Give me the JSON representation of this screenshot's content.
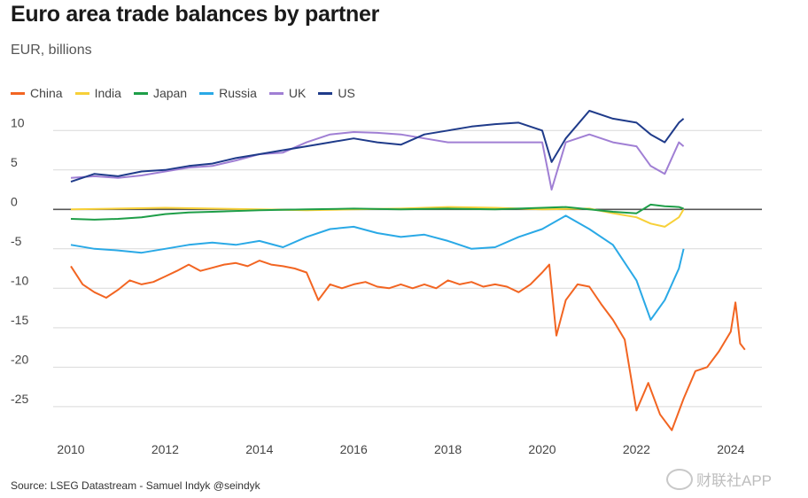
{
  "header": {
    "title": "Euro area trade balances by partner",
    "subtitle": "EUR, billions"
  },
  "footer": {
    "source": "Source: LSEG Datastream - Samuel Indyk @seindyk"
  },
  "watermark": {
    "text": "财联社APP"
  },
  "chart_data": {
    "type": "line",
    "title": "Euro area trade balances by partner",
    "subtitle": "EUR, billions",
    "xlabel": "",
    "ylabel": "",
    "xlim": [
      2010,
      2024.4
    ],
    "ylim": [
      -28.5,
      12.5
    ],
    "x_ticks": [
      "2010",
      "2012",
      "2014",
      "2016",
      "2018",
      "2020",
      "2022",
      "2024"
    ],
    "y_ticks": [
      "10",
      "5",
      "0",
      "-5",
      "-10",
      "-15",
      "-20",
      "-25"
    ],
    "grid": true,
    "legend_position": "top-left",
    "series": [
      {
        "name": "China",
        "color": "#f26522",
        "points": [
          [
            2010.0,
            -7.2
          ],
          [
            2010.25,
            -9.5
          ],
          [
            2010.5,
            -10.5
          ],
          [
            2010.75,
            -11.2
          ],
          [
            2011.0,
            -10.2
          ],
          [
            2011.25,
            -9.0
          ],
          [
            2011.5,
            -9.5
          ],
          [
            2011.75,
            -9.2
          ],
          [
            2012.0,
            -8.5
          ],
          [
            2012.25,
            -7.8
          ],
          [
            2012.5,
            -7.0
          ],
          [
            2012.75,
            -7.8
          ],
          [
            2013.0,
            -7.4
          ],
          [
            2013.25,
            -7.0
          ],
          [
            2013.5,
            -6.8
          ],
          [
            2013.75,
            -7.2
          ],
          [
            2014.0,
            -6.5
          ],
          [
            2014.25,
            -7.0
          ],
          [
            2014.5,
            -7.2
          ],
          [
            2014.75,
            -7.5
          ],
          [
            2015.0,
            -8.0
          ],
          [
            2015.25,
            -11.5
          ],
          [
            2015.5,
            -9.5
          ],
          [
            2015.75,
            -10.0
          ],
          [
            2016.0,
            -9.5
          ],
          [
            2016.25,
            -9.2
          ],
          [
            2016.5,
            -9.8
          ],
          [
            2016.75,
            -10.0
          ],
          [
            2017.0,
            -9.5
          ],
          [
            2017.25,
            -10.0
          ],
          [
            2017.5,
            -9.5
          ],
          [
            2017.75,
            -10.0
          ],
          [
            2018.0,
            -9.0
          ],
          [
            2018.25,
            -9.5
          ],
          [
            2018.5,
            -9.2
          ],
          [
            2018.75,
            -9.8
          ],
          [
            2019.0,
            -9.5
          ],
          [
            2019.25,
            -9.8
          ],
          [
            2019.5,
            -10.5
          ],
          [
            2019.75,
            -9.5
          ],
          [
            2020.0,
            -8.0
          ],
          [
            2020.15,
            -7.0
          ],
          [
            2020.3,
            -16.0
          ],
          [
            2020.5,
            -11.5
          ],
          [
            2020.75,
            -9.5
          ],
          [
            2021.0,
            -9.8
          ],
          [
            2021.25,
            -12.0
          ],
          [
            2021.5,
            -14.0
          ],
          [
            2021.75,
            -16.5
          ],
          [
            2022.0,
            -25.5
          ],
          [
            2022.25,
            -22.0
          ],
          [
            2022.5,
            -26.0
          ],
          [
            2022.75,
            -28.0
          ],
          [
            2023.0,
            -24.0
          ],
          [
            2023.25,
            -20.5
          ],
          [
            2023.5,
            -20.0
          ],
          [
            2023.75,
            -18.0
          ],
          [
            2024.0,
            -15.5
          ],
          [
            2024.1,
            -11.8
          ],
          [
            2024.2,
            -17.0
          ],
          [
            2024.3,
            -17.8
          ]
        ]
      },
      {
        "name": "India",
        "color": "#f7d038",
        "points": [
          [
            2010.0,
            0.0
          ],
          [
            2011.0,
            0.1
          ],
          [
            2012.0,
            0.2
          ],
          [
            2013.0,
            0.1
          ],
          [
            2014.0,
            0.0
          ],
          [
            2015.0,
            -0.1
          ],
          [
            2016.0,
            0.0
          ],
          [
            2017.0,
            0.1
          ],
          [
            2018.0,
            0.3
          ],
          [
            2019.0,
            0.2
          ],
          [
            2020.0,
            0.0
          ],
          [
            2021.0,
            0.1
          ],
          [
            2021.5,
            -0.5
          ],
          [
            2022.0,
            -1.0
          ],
          [
            2022.3,
            -1.8
          ],
          [
            2022.6,
            -2.2
          ],
          [
            2022.9,
            -1.0
          ],
          [
            2023.0,
            0.0
          ]
        ]
      },
      {
        "name": "Japan",
        "color": "#1e9e48",
        "points": [
          [
            2010.0,
            -1.2
          ],
          [
            2010.5,
            -1.3
          ],
          [
            2011.0,
            -1.2
          ],
          [
            2011.5,
            -1.0
          ],
          [
            2012.0,
            -0.6
          ],
          [
            2012.5,
            -0.4
          ],
          [
            2013.0,
            -0.3
          ],
          [
            2014.0,
            -0.1
          ],
          [
            2015.0,
            0.0
          ],
          [
            2016.0,
            0.1
          ],
          [
            2017.0,
            0.0
          ],
          [
            2018.0,
            0.1
          ],
          [
            2019.0,
            0.0
          ],
          [
            2020.0,
            0.2
          ],
          [
            2020.5,
            0.3
          ],
          [
            2021.0,
            0.0
          ],
          [
            2021.5,
            -0.3
          ],
          [
            2022.0,
            -0.5
          ],
          [
            2022.3,
            0.6
          ],
          [
            2022.6,
            0.4
          ],
          [
            2022.9,
            0.3
          ],
          [
            2023.0,
            0.1
          ]
        ]
      },
      {
        "name": "Russia",
        "color": "#2aa9e6",
        "points": [
          [
            2010.0,
            -4.5
          ],
          [
            2010.5,
            -5.0
          ],
          [
            2011.0,
            -5.2
          ],
          [
            2011.5,
            -5.5
          ],
          [
            2012.0,
            -5.0
          ],
          [
            2012.5,
            -4.5
          ],
          [
            2013.0,
            -4.2
          ],
          [
            2013.5,
            -4.5
          ],
          [
            2014.0,
            -4.0
          ],
          [
            2014.5,
            -4.8
          ],
          [
            2015.0,
            -3.5
          ],
          [
            2015.5,
            -2.5
          ],
          [
            2016.0,
            -2.2
          ],
          [
            2016.5,
            -3.0
          ],
          [
            2017.0,
            -3.5
          ],
          [
            2017.5,
            -3.2
          ],
          [
            2018.0,
            -4.0
          ],
          [
            2018.5,
            -5.0
          ],
          [
            2019.0,
            -4.8
          ],
          [
            2019.5,
            -3.5
          ],
          [
            2020.0,
            -2.5
          ],
          [
            2020.5,
            -0.8
          ],
          [
            2021.0,
            -2.5
          ],
          [
            2021.5,
            -4.5
          ],
          [
            2022.0,
            -9.0
          ],
          [
            2022.3,
            -14.0
          ],
          [
            2022.6,
            -11.5
          ],
          [
            2022.9,
            -7.5
          ],
          [
            2023.0,
            -5.0
          ]
        ]
      },
      {
        "name": "UK",
        "color": "#a07fd4",
        "points": [
          [
            2010.0,
            4.0
          ],
          [
            2010.5,
            4.2
          ],
          [
            2011.0,
            4.0
          ],
          [
            2011.5,
            4.3
          ],
          [
            2012.0,
            4.8
          ],
          [
            2012.5,
            5.3
          ],
          [
            2013.0,
            5.5
          ],
          [
            2013.5,
            6.2
          ],
          [
            2014.0,
            7.0
          ],
          [
            2014.5,
            7.2
          ],
          [
            2015.0,
            8.5
          ],
          [
            2015.5,
            9.5
          ],
          [
            2016.0,
            9.8
          ],
          [
            2016.5,
            9.7
          ],
          [
            2017.0,
            9.5
          ],
          [
            2017.5,
            9.0
          ],
          [
            2018.0,
            8.5
          ],
          [
            2018.5,
            8.5
          ],
          [
            2019.0,
            8.5
          ],
          [
            2019.5,
            8.5
          ],
          [
            2020.0,
            8.5
          ],
          [
            2020.2,
            2.5
          ],
          [
            2020.5,
            8.5
          ],
          [
            2021.0,
            9.5
          ],
          [
            2021.5,
            8.5
          ],
          [
            2022.0,
            8.0
          ],
          [
            2022.3,
            5.5
          ],
          [
            2022.6,
            4.5
          ],
          [
            2022.9,
            8.5
          ],
          [
            2023.0,
            8.0
          ]
        ]
      },
      {
        "name": "US",
        "color": "#1f3b8a",
        "points": [
          [
            2010.0,
            3.5
          ],
          [
            2010.5,
            4.5
          ],
          [
            2011.0,
            4.2
          ],
          [
            2011.5,
            4.8
          ],
          [
            2012.0,
            5.0
          ],
          [
            2012.5,
            5.5
          ],
          [
            2013.0,
            5.8
          ],
          [
            2013.5,
            6.5
          ],
          [
            2014.0,
            7.0
          ],
          [
            2014.5,
            7.5
          ],
          [
            2015.0,
            8.0
          ],
          [
            2015.5,
            8.5
          ],
          [
            2016.0,
            9.0
          ],
          [
            2016.5,
            8.5
          ],
          [
            2017.0,
            8.2
          ],
          [
            2017.5,
            9.5
          ],
          [
            2018.0,
            10.0
          ],
          [
            2018.5,
            10.5
          ],
          [
            2019.0,
            10.8
          ],
          [
            2019.5,
            11.0
          ],
          [
            2020.0,
            10.0
          ],
          [
            2020.2,
            6.0
          ],
          [
            2020.5,
            9.0
          ],
          [
            2021.0,
            12.5
          ],
          [
            2021.5,
            11.5
          ],
          [
            2022.0,
            11.0
          ],
          [
            2022.3,
            9.5
          ],
          [
            2022.6,
            8.5
          ],
          [
            2022.9,
            11.0
          ],
          [
            2023.0,
            11.5
          ]
        ]
      }
    ]
  }
}
